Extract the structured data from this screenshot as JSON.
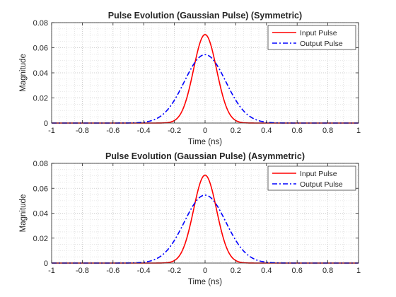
{
  "chart_data": [
    {
      "type": "line",
      "title": "Pulse Evolution (Gaussian Pulse) (Symmetric)",
      "xlabel": "Time (ns)",
      "ylabel": "Magnitude",
      "xlim": [
        -1,
        1
      ],
      "ylim": [
        0,
        0.08
      ],
      "xticks": [
        -1,
        -0.8,
        -0.6,
        -0.4,
        -0.2,
        0,
        0.2,
        0.4,
        0.6,
        0.8,
        1
      ],
      "yticks": [
        0,
        0.02,
        0.04,
        0.06,
        0.08
      ],
      "xtick_labels": [
        "-1",
        "-0.8",
        "-0.6",
        "-0.4",
        "-0.2",
        "0",
        "0.2",
        "0.4",
        "0.6",
        "0.8",
        "1"
      ],
      "ytick_labels": [
        "0",
        "0.02",
        "0.04",
        "0.06",
        "0.08"
      ],
      "grid": true,
      "minor_grid": true,
      "legend": "top-right",
      "series": [
        {
          "name": "Input Pulse",
          "color": "#ff0000",
          "style": "solid",
          "peak": 0.0705,
          "center": 0,
          "width_sigma": 0.075
        },
        {
          "name": "Output Pulse",
          "color": "#0000ff",
          "style": "dashdot",
          "peak": 0.0545,
          "center": 0,
          "width_sigma": 0.135
        }
      ]
    },
    {
      "type": "line",
      "title": "Pulse Evolution (Gaussian Pulse) (Asymmetric)",
      "xlabel": "Time (ns)",
      "ylabel": "Magnitude",
      "xlim": [
        -1,
        1
      ],
      "ylim": [
        0,
        0.08
      ],
      "xticks": [
        -1,
        -0.8,
        -0.6,
        -0.4,
        -0.2,
        0,
        0.2,
        0.4,
        0.6,
        0.8,
        1
      ],
      "yticks": [
        0,
        0.02,
        0.04,
        0.06,
        0.08
      ],
      "xtick_labels": [
        "-1",
        "-0.8",
        "-0.6",
        "-0.4",
        "-0.2",
        "0",
        "0.2",
        "0.4",
        "0.6",
        "0.8",
        "1"
      ],
      "ytick_labels": [
        "0",
        "0.02",
        "0.04",
        "0.06",
        "0.08"
      ],
      "grid": true,
      "minor_grid": true,
      "legend": "top-right",
      "series": [
        {
          "name": "Input Pulse",
          "color": "#ff0000",
          "style": "solid",
          "peak": 0.0705,
          "center": 0,
          "width_sigma": 0.075
        },
        {
          "name": "Output Pulse",
          "color": "#0000ff",
          "style": "dashdot",
          "peak": 0.0545,
          "center": 0,
          "width_sigma": 0.135
        }
      ]
    }
  ]
}
